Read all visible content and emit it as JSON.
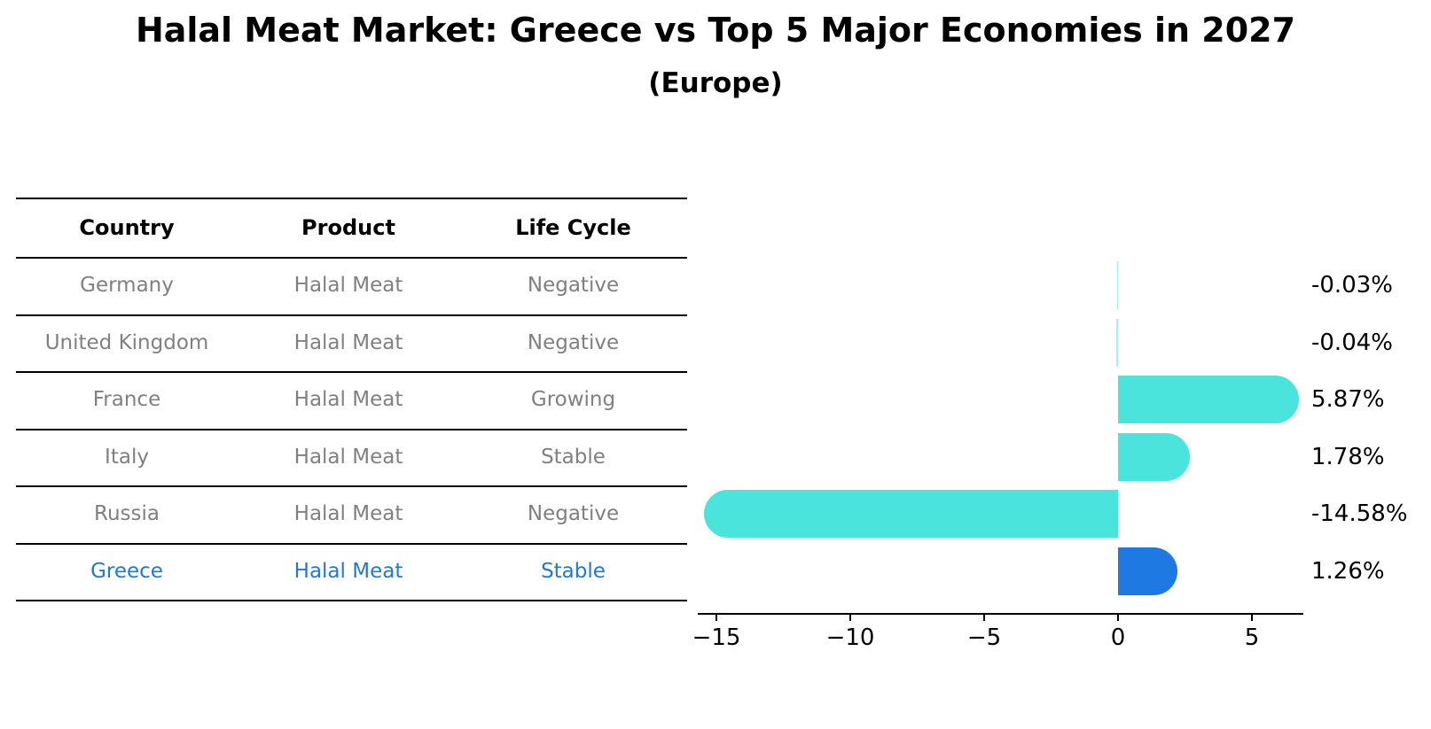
{
  "title": "Halal Meat Market: Greece vs Top 5 Major Economies in 2027",
  "subtitle": "(Europe)",
  "table": {
    "headers": [
      "Country",
      "Product",
      "Life Cycle"
    ],
    "rows": [
      {
        "country": "Germany",
        "product": "Halal Meat",
        "life_cycle": "Negative",
        "highlight": false
      },
      {
        "country": "United Kingdom",
        "product": "Halal Meat",
        "life_cycle": "Negative",
        "highlight": false
      },
      {
        "country": "France",
        "product": "Halal Meat",
        "life_cycle": "Growing",
        "highlight": false
      },
      {
        "country": "Italy",
        "product": "Halal Meat",
        "life_cycle": "Stable",
        "highlight": false
      },
      {
        "country": "Russia",
        "product": "Halal Meat",
        "life_cycle": "Negative",
        "highlight": false
      },
      {
        "country": "Greece",
        "product": "Halal Meat",
        "life_cycle": "Stable",
        "highlight": true
      }
    ]
  },
  "chart_data": {
    "type": "bar",
    "orientation": "horizontal",
    "title": "Halal Meat Market: Greece vs Top 5 Major Economies in 2027",
    "subtitle": "(Europe)",
    "categories": [
      "Germany",
      "United Kingdom",
      "France",
      "Italy",
      "Russia",
      "Greece"
    ],
    "values": [
      -0.03,
      -0.04,
      5.87,
      1.78,
      -14.58,
      1.26
    ],
    "value_labels": [
      "-0.03%",
      "-0.04%",
      "5.87%",
      "1.78%",
      "-14.58%",
      "1.26%"
    ],
    "xlabel": "",
    "ylabel": "",
    "xlim": [
      -15.7,
      6.9
    ],
    "xticks": [
      -15,
      -10,
      -5,
      0,
      5
    ],
    "xtick_labels": [
      "−15",
      "−10",
      "−5",
      "0",
      "5"
    ],
    "grid": false,
    "legend_position": "none",
    "highlight_index": 5,
    "colors": {
      "bar_default": "#4BE4DC",
      "bar_highlight": "#1E79E3",
      "highlight_text": "#2279cf",
      "row_text": "#808080",
      "header_text": "#000000",
      "axis": "#000000"
    }
  }
}
